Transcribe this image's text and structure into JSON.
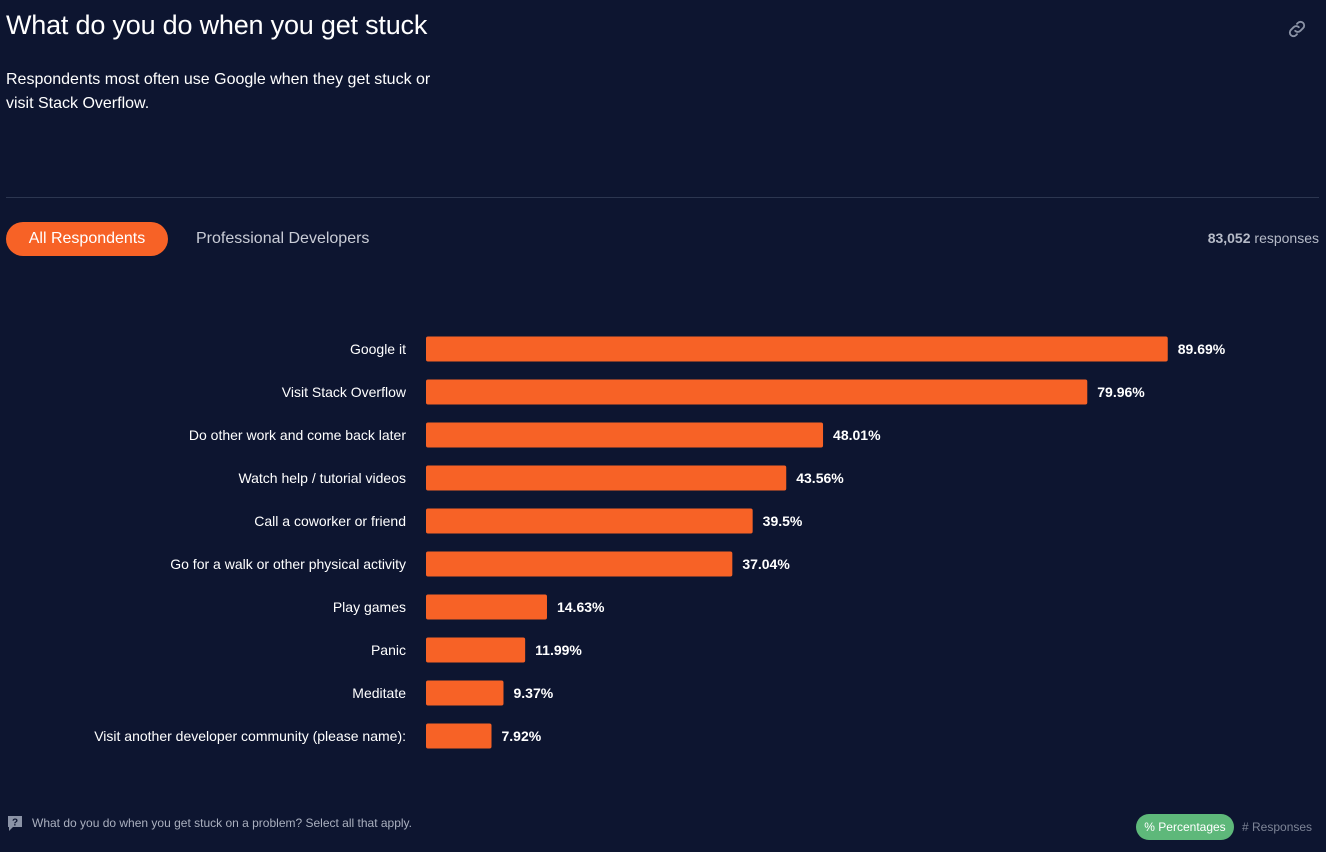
{
  "header": {
    "title": "What do you do when you get stuck",
    "subtitle": "Respondents most often use Google when they get stuck or visit Stack Overflow.",
    "link_icon": "link-icon"
  },
  "tabs": {
    "all": "All Respondents",
    "pro": "Professional Developers"
  },
  "responses": {
    "count": "83,052",
    "label": "responses"
  },
  "footer": {
    "question": "What do you do when you get stuck on a problem? Select all that apply.",
    "toggle_pct": "% Percentages",
    "toggle_resp": "# Responses"
  },
  "colors": {
    "background": "#0d1530",
    "bar": "#f76226",
    "accent_green": "#5eb87a"
  },
  "chart_data": {
    "type": "bar",
    "orientation": "horizontal",
    "categories": [
      "Google it",
      "Visit Stack Overflow",
      "Do other work and come back later",
      "Watch help / tutorial videos",
      "Call a coworker or friend",
      "Go for a walk or other physical activity",
      "Play games",
      "Panic",
      "Meditate",
      "Visit another developer community (please name):"
    ],
    "values": [
      89.69,
      79.96,
      48.01,
      43.56,
      39.5,
      37.04,
      14.63,
      11.99,
      9.37,
      7.92
    ],
    "value_labels": [
      "89.69%",
      "79.96%",
      "48.01%",
      "43.56%",
      "39.5%",
      "37.04%",
      "14.63%",
      "11.99%",
      "9.37%",
      "7.92%"
    ],
    "xlim": [
      0,
      100
    ],
    "unit": "%"
  }
}
